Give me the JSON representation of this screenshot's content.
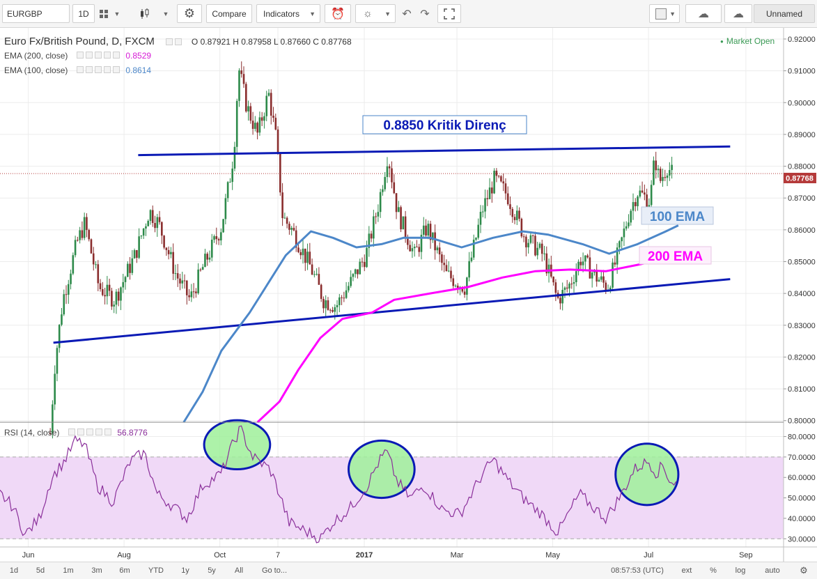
{
  "toolbar": {
    "symbol": "EURGBP",
    "interval": "1D",
    "compare_label": "Compare",
    "indicators_label": "Indicators",
    "layout_name": "Unnamed"
  },
  "legend": {
    "title": "Euro Fx/British Pound, D, FXCM",
    "ohlc": "O 0.87921 H 0.87958 L 0.87660 C 0.87768",
    "market_status": "Market Open",
    "ema200_label": "EMA (200, close)",
    "ema200_value": "0.8529",
    "ema100_label": "EMA (100, close)",
    "ema100_value": "0.8614",
    "rsi_label": "RSI (14, close)",
    "rsi_value": "56.8776"
  },
  "colors": {
    "up": "#2d8a4a",
    "down": "#8a2d2d",
    "ema100": "#4c87c9",
    "ema200": "#ff00ff",
    "trend": "#0a1ab5",
    "rsi_line": "#8a2f9a",
    "rsi_band": "#f0d9f7",
    "circle_fill": "#9ff09a",
    "circle_stroke": "#0a1ab5"
  },
  "annotations": {
    "resistance": "0.8850 Kritik Direnç",
    "ema100_tag": "100 EMA",
    "ema200_tag": "200 EMA"
  },
  "bottom": {
    "ranges": [
      "1d",
      "5d",
      "1m",
      "3m",
      "6m",
      "YTD",
      "1y",
      "5y",
      "All"
    ],
    "goto": "Go to...",
    "clock": "08:57:53 (UTC)",
    "options": [
      "ext",
      "%",
      "log",
      "auto"
    ]
  },
  "chart_data": {
    "type": "line",
    "title": "Euro Fx/British Pound, D, FXCM",
    "price_axis": {
      "ticks": [
        "0.92000",
        "0.91000",
        "0.90000",
        "0.89000",
        "0.88000",
        "0.87000",
        "0.86000",
        "0.85000",
        "0.84000",
        "0.83000",
        "0.82000",
        "0.81000",
        "0.80000"
      ],
      "range": [
        0.7995,
        0.9235
      ],
      "last_price": "0.87768"
    },
    "rsi_axis": {
      "ticks": [
        "80.0000",
        "70.0000",
        "60.0000",
        "50.0000",
        "40.0000",
        "30.0000"
      ],
      "range": [
        26,
        87
      ],
      "band": [
        30,
        70
      ]
    },
    "time_axis": {
      "labels": [
        "Jun",
        "Aug",
        "Oct",
        "7",
        "2017",
        "Mar",
        "May",
        "Jul",
        "Sep"
      ],
      "range": [
        "2016-05-14",
        "2017-09-25"
      ]
    },
    "price_path": [
      [
        "2016-06-15",
        0.796
      ],
      [
        "2016-06-18",
        0.818
      ],
      [
        "2016-06-23",
        0.838
      ],
      [
        "2016-07-02",
        0.856
      ],
      [
        "2016-07-07",
        0.862
      ],
      [
        "2016-07-16",
        0.842
      ],
      [
        "2016-07-26",
        0.838
      ],
      [
        "2016-08-08",
        0.852
      ],
      [
        "2016-08-17",
        0.866
      ],
      [
        "2016-08-23",
        0.862
      ],
      [
        "2016-09-03",
        0.846
      ],
      [
        "2016-09-12",
        0.838
      ],
      [
        "2016-09-20",
        0.848
      ],
      [
        "2016-10-02",
        0.861
      ],
      [
        "2016-10-08",
        0.878
      ],
      [
        "2016-10-10",
        0.885
      ],
      [
        "2016-10-13",
        0.911
      ],
      [
        "2016-10-18",
        0.899
      ],
      [
        "2016-10-25",
        0.89
      ],
      [
        "2016-11-01",
        0.903
      ],
      [
        "2016-11-06",
        0.888
      ],
      [
        "2016-11-10",
        0.864
      ],
      [
        "2016-11-16",
        0.86
      ],
      [
        "2016-11-28",
        0.848
      ],
      [
        "2016-12-06",
        0.838
      ],
      [
        "2016-12-14",
        0.836
      ],
      [
        "2016-12-24",
        0.844
      ],
      [
        "2017-01-02",
        0.852
      ],
      [
        "2017-01-10",
        0.868
      ],
      [
        "2017-01-16",
        0.884
      ],
      [
        "2017-01-22",
        0.866
      ],
      [
        "2017-02-02",
        0.852
      ],
      [
        "2017-02-10",
        0.861
      ],
      [
        "2017-02-22",
        0.846
      ],
      [
        "2017-03-06",
        0.842
      ],
      [
        "2017-03-17",
        0.866
      ],
      [
        "2017-03-25",
        0.876
      ],
      [
        "2017-04-02",
        0.871
      ],
      [
        "2017-04-13",
        0.858
      ],
      [
        "2017-04-25",
        0.852
      ],
      [
        "2017-05-04",
        0.838
      ],
      [
        "2017-05-11",
        0.842
      ],
      [
        "2017-05-19",
        0.851
      ],
      [
        "2017-05-29",
        0.845
      ],
      [
        "2017-06-05",
        0.842
      ],
      [
        "2017-06-12",
        0.853
      ],
      [
        "2017-06-19",
        0.866
      ],
      [
        "2017-06-24",
        0.872
      ],
      [
        "2017-07-02",
        0.869
      ],
      [
        "2017-07-05",
        0.883
      ],
      [
        "2017-07-08",
        0.875
      ],
      [
        "2017-07-13",
        0.88
      ],
      [
        "2017-07-16",
        0.8777
      ]
    ],
    "ema100": [
      [
        "2016-09-08",
        0.7995
      ],
      [
        "2016-09-20",
        0.809
      ],
      [
        "2016-10-02",
        0.822
      ],
      [
        "2016-10-20",
        0.834
      ],
      [
        "2016-11-12",
        0.852
      ],
      [
        "2016-11-28",
        0.8595
      ],
      [
        "2016-12-12",
        0.8575
      ],
      [
        "2016-12-27",
        0.8545
      ],
      [
        "2017-01-12",
        0.8555
      ],
      [
        "2017-01-26",
        0.8575
      ],
      [
        "2017-02-12",
        0.8575
      ],
      [
        "2017-03-04",
        0.8545
      ],
      [
        "2017-03-24",
        0.8575
      ],
      [
        "2017-04-12",
        0.8595
      ],
      [
        "2017-04-28",
        0.8585
      ],
      [
        "2017-05-20",
        0.8555
      ],
      [
        "2017-06-06",
        0.8525
      ],
      [
        "2017-06-24",
        0.8555
      ],
      [
        "2017-07-12",
        0.8595
      ],
      [
        "2017-07-20",
        0.8614
      ]
    ],
    "ema200": [
      [
        "2016-10-25",
        0.7995
      ],
      [
        "2016-11-08",
        0.806
      ],
      [
        "2016-11-20",
        0.816
      ],
      [
        "2016-12-04",
        0.826
      ],
      [
        "2016-12-18",
        0.832
      ],
      [
        "2017-01-06",
        0.834
      ],
      [
        "2017-01-20",
        0.838
      ],
      [
        "2017-02-12",
        0.84
      ],
      [
        "2017-03-08",
        0.842
      ],
      [
        "2017-03-30",
        0.845
      ],
      [
        "2017-04-20",
        0.847
      ],
      [
        "2017-05-12",
        0.8475
      ],
      [
        "2017-06-04",
        0.847
      ],
      [
        "2017-06-24",
        0.849
      ],
      [
        "2017-07-12",
        0.851
      ],
      [
        "2017-07-20",
        0.8529
      ]
    ],
    "trendlines": [
      {
        "from": [
          "2016-08-10",
          0.8835
        ],
        "to": [
          "2017-08-22",
          0.8862
        ]
      },
      {
        "from": [
          "2016-06-17",
          0.8245
        ],
        "to": [
          "2017-08-22",
          0.8445
        ]
      }
    ],
    "rsi_path": [
      [
        "2016-05-14",
        52
      ],
      [
        "2016-05-22",
        46
      ],
      [
        "2016-05-30",
        32
      ],
      [
        "2016-06-08",
        40
      ],
      [
        "2016-06-16",
        60
      ],
      [
        "2016-06-24",
        68
      ],
      [
        "2016-07-01",
        78
      ],
      [
        "2016-07-07",
        76
      ],
      [
        "2016-07-15",
        56
      ],
      [
        "2016-07-25",
        48
      ],
      [
        "2016-08-05",
        68
      ],
      [
        "2016-08-14",
        72
      ],
      [
        "2016-08-22",
        52
      ],
      [
        "2016-09-01",
        46
      ],
      [
        "2016-09-10",
        40
      ],
      [
        "2016-09-20",
        56
      ],
      [
        "2016-10-02",
        62
      ],
      [
        "2016-10-08",
        74
      ],
      [
        "2016-10-14",
        84
      ],
      [
        "2016-10-22",
        70
      ],
      [
        "2016-11-02",
        64
      ],
      [
        "2016-11-08",
        52
      ],
      [
        "2016-11-14",
        38
      ],
      [
        "2016-11-24",
        34
      ],
      [
        "2016-12-04",
        30
      ],
      [
        "2016-12-12",
        38
      ],
      [
        "2016-12-22",
        44
      ],
      [
        "2017-01-03",
        56
      ],
      [
        "2017-01-09",
        66
      ],
      [
        "2017-01-15",
        73
      ],
      [
        "2017-01-22",
        58
      ],
      [
        "2017-01-30",
        50
      ],
      [
        "2017-02-08",
        56
      ],
      [
        "2017-02-20",
        44
      ],
      [
        "2017-03-03",
        42
      ],
      [
        "2017-03-16",
        60
      ],
      [
        "2017-03-24",
        69
      ],
      [
        "2017-04-03",
        58
      ],
      [
        "2017-04-12",
        50
      ],
      [
        "2017-04-24",
        42
      ],
      [
        "2017-05-04",
        33
      ],
      [
        "2017-05-08",
        38
      ],
      [
        "2017-05-18",
        52
      ],
      [
        "2017-05-26",
        46
      ],
      [
        "2017-06-04",
        40
      ],
      [
        "2017-06-14",
        52
      ],
      [
        "2017-06-22",
        64
      ],
      [
        "2017-07-01",
        68
      ],
      [
        "2017-07-06",
        62
      ],
      [
        "2017-07-10",
        66
      ],
      [
        "2017-07-15",
        58
      ],
      [
        "2017-07-20",
        56.9
      ]
    ],
    "rsi_highlights": [
      {
        "center": [
          "2016-10-12",
          76
        ],
        "rx_days": 21,
        "ry": 12
      },
      {
        "center": [
          "2017-01-12",
          64
        ],
        "rx_days": 21,
        "ry": 14
      },
      {
        "center": [
          "2017-06-30",
          61.5
        ],
        "rx_days": 20,
        "ry": 15
      }
    ]
  }
}
